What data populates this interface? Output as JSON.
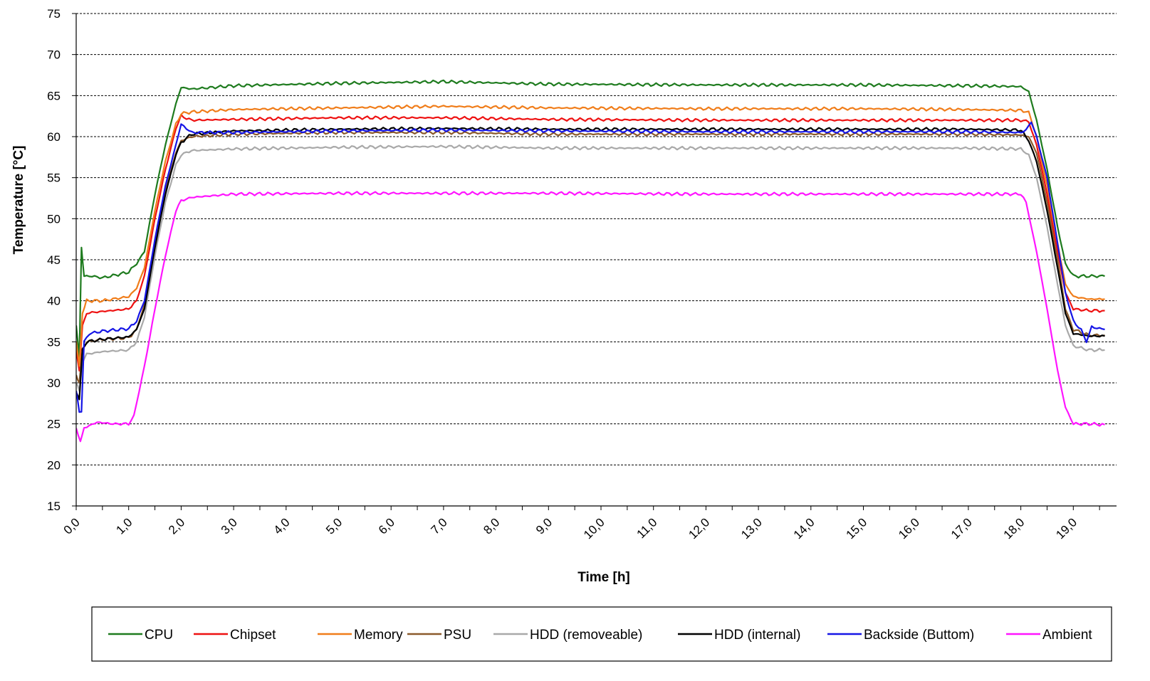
{
  "chart_data": {
    "type": "line",
    "title": "",
    "xlabel": "Time [h]",
    "ylabel": "Temperature [°C]",
    "xlim": [
      0,
      19.6
    ],
    "ylim": [
      15,
      75
    ],
    "x_ticks": [
      "0,0",
      "1,0",
      "2,0",
      "3,0",
      "4,0",
      "5,0",
      "6,0",
      "7,0",
      "8,0",
      "9,0",
      "10,0",
      "11,0",
      "12,0",
      "13,0",
      "14,0",
      "15,0",
      "16,0",
      "17,0",
      "18,0",
      "19,0"
    ],
    "y_ticks": [
      "15",
      "20",
      "25",
      "30",
      "35",
      "40",
      "45",
      "50",
      "55",
      "60",
      "65",
      "70",
      "75"
    ],
    "grid": "horizontal dashed",
    "legend_position": "bottom",
    "series": [
      {
        "name": "CPU",
        "color": "#1e7b1e",
        "points": [
          [
            0,
            37
          ],
          [
            0.06,
            33
          ],
          [
            0.1,
            46.5
          ],
          [
            0.15,
            43
          ],
          [
            0.3,
            43
          ],
          [
            0.5,
            42.8
          ],
          [
            0.8,
            43.2
          ],
          [
            1.0,
            43.5
          ],
          [
            1.15,
            44.5
          ],
          [
            1.3,
            46
          ],
          [
            1.5,
            53
          ],
          [
            1.7,
            59
          ],
          [
            1.9,
            64
          ],
          [
            2.0,
            66
          ],
          [
            2.2,
            65.8
          ],
          [
            3,
            66.2
          ],
          [
            5,
            66.5
          ],
          [
            7,
            66.7
          ],
          [
            9,
            66.4
          ],
          [
            12,
            66.3
          ],
          [
            15,
            66.3
          ],
          [
            17,
            66.2
          ],
          [
            18.0,
            66.1
          ],
          [
            18.15,
            65.5
          ],
          [
            18.3,
            62
          ],
          [
            18.5,
            56
          ],
          [
            18.7,
            49
          ],
          [
            18.85,
            44.5
          ],
          [
            19.0,
            43
          ],
          [
            19.3,
            43
          ],
          [
            19.6,
            43
          ]
        ]
      },
      {
        "name": "Chipset",
        "color": "#ee1111",
        "points": [
          [
            0,
            34
          ],
          [
            0.06,
            31.5
          ],
          [
            0.12,
            37
          ],
          [
            0.2,
            38.5
          ],
          [
            0.5,
            38.7
          ],
          [
            1.0,
            39
          ],
          [
            1.15,
            40
          ],
          [
            1.3,
            43
          ],
          [
            1.5,
            50
          ],
          [
            1.7,
            56
          ],
          [
            1.9,
            61
          ],
          [
            2.0,
            62.5
          ],
          [
            2.2,
            62
          ],
          [
            3,
            62.1
          ],
          [
            5,
            62.3
          ],
          [
            7,
            62.3
          ],
          [
            9,
            62.1
          ],
          [
            12,
            62
          ],
          [
            15,
            62
          ],
          [
            17,
            62
          ],
          [
            18.0,
            62
          ],
          [
            18.15,
            61.8
          ],
          [
            18.3,
            59
          ],
          [
            18.5,
            53
          ],
          [
            18.7,
            46
          ],
          [
            18.85,
            41
          ],
          [
            19.0,
            39
          ],
          [
            19.3,
            38.8
          ],
          [
            19.6,
            38.8
          ]
        ]
      },
      {
        "name": "Memory",
        "color": "#f07d1a",
        "points": [
          [
            0,
            35
          ],
          [
            0.06,
            32
          ],
          [
            0.12,
            38.5
          ],
          [
            0.2,
            40
          ],
          [
            0.5,
            40
          ],
          [
            1.0,
            40.5
          ],
          [
            1.15,
            41.5
          ],
          [
            1.3,
            44
          ],
          [
            1.5,
            51
          ],
          [
            1.7,
            57
          ],
          [
            1.9,
            61.5
          ],
          [
            2.0,
            62.8
          ],
          [
            2.2,
            63
          ],
          [
            3,
            63.3
          ],
          [
            5,
            63.5
          ],
          [
            7,
            63.7
          ],
          [
            9,
            63.5
          ],
          [
            12,
            63.4
          ],
          [
            15,
            63.4
          ],
          [
            17,
            63.3
          ],
          [
            18.0,
            63.2
          ],
          [
            18.15,
            63
          ],
          [
            18.3,
            60
          ],
          [
            18.5,
            54
          ],
          [
            18.7,
            47
          ],
          [
            18.85,
            42
          ],
          [
            19.0,
            40.5
          ],
          [
            19.3,
            40.2
          ],
          [
            19.6,
            40.2
          ]
        ]
      },
      {
        "name": "PSU",
        "color": "#8b5a2b",
        "points": [
          [
            0,
            31
          ],
          [
            0.06,
            30
          ],
          [
            0.12,
            34
          ],
          [
            0.2,
            35
          ],
          [
            0.5,
            35.3
          ],
          [
            1.0,
            35.5
          ],
          [
            1.15,
            36.5
          ],
          [
            1.3,
            39.5
          ],
          [
            1.5,
            47
          ],
          [
            1.7,
            53.5
          ],
          [
            1.9,
            58
          ],
          [
            2.0,
            59.5
          ],
          [
            2.2,
            60
          ],
          [
            3,
            60.3
          ],
          [
            5,
            60.5
          ],
          [
            7,
            60.5
          ],
          [
            9,
            60.3
          ],
          [
            12,
            60.3
          ],
          [
            15,
            60.3
          ],
          [
            17,
            60.3
          ],
          [
            18.0,
            60.2
          ],
          [
            18.15,
            60
          ],
          [
            18.3,
            58
          ],
          [
            18.5,
            52
          ],
          [
            18.7,
            45
          ],
          [
            18.85,
            39
          ],
          [
            19.0,
            36.5
          ],
          [
            19.3,
            35.8
          ],
          [
            19.6,
            35.8
          ]
        ]
      },
      {
        "name": "HDD (removeable)",
        "color": "#a9a9a9",
        "points": [
          [
            0,
            30
          ],
          [
            0.06,
            29
          ],
          [
            0.12,
            32.5
          ],
          [
            0.2,
            33.5
          ],
          [
            0.5,
            33.8
          ],
          [
            1.0,
            34
          ],
          [
            1.15,
            35
          ],
          [
            1.3,
            38
          ],
          [
            1.5,
            45.5
          ],
          [
            1.7,
            52
          ],
          [
            1.9,
            56.5
          ],
          [
            2.0,
            57.8
          ],
          [
            2.2,
            58.3
          ],
          [
            3,
            58.5
          ],
          [
            5,
            58.7
          ],
          [
            7,
            58.8
          ],
          [
            9,
            58.6
          ],
          [
            12,
            58.6
          ],
          [
            15,
            58.6
          ],
          [
            17,
            58.6
          ],
          [
            18.0,
            58.5
          ],
          [
            18.15,
            57.8
          ],
          [
            18.3,
            55
          ],
          [
            18.5,
            49
          ],
          [
            18.7,
            42
          ],
          [
            18.85,
            37
          ],
          [
            19.0,
            34.5
          ],
          [
            19.3,
            34
          ],
          [
            19.6,
            34
          ]
        ]
      },
      {
        "name": "HDD (internal)",
        "color": "#000000",
        "points": [
          [
            0,
            29
          ],
          [
            0.06,
            28
          ],
          [
            0.12,
            34
          ],
          [
            0.2,
            35
          ],
          [
            0.5,
            35.3
          ],
          [
            1.0,
            35.6
          ],
          [
            1.15,
            36.5
          ],
          [
            1.3,
            39
          ],
          [
            1.5,
            46.5
          ],
          [
            1.7,
            53
          ],
          [
            1.9,
            57.8
          ],
          [
            2.0,
            59.3
          ],
          [
            2.2,
            60.3
          ],
          [
            3,
            60.7
          ],
          [
            5,
            60.9
          ],
          [
            7,
            61
          ],
          [
            9,
            60.9
          ],
          [
            12,
            60.9
          ],
          [
            15,
            60.9
          ],
          [
            17,
            60.9
          ],
          [
            18.0,
            60.8
          ],
          [
            18.15,
            59.5
          ],
          [
            18.3,
            57
          ],
          [
            18.5,
            51
          ],
          [
            18.7,
            44
          ],
          [
            18.85,
            38.5
          ],
          [
            19.0,
            36
          ],
          [
            19.3,
            35.7
          ],
          [
            19.6,
            35.7
          ]
        ]
      },
      {
        "name": "Backside (Buttom)",
        "color": "#1515e6",
        "points": [
          [
            0,
            29
          ],
          [
            0.06,
            26.5
          ],
          [
            0.1,
            26.5
          ],
          [
            0.15,
            35
          ],
          [
            0.25,
            36
          ],
          [
            0.5,
            36.3
          ],
          [
            1.0,
            36.6
          ],
          [
            1.15,
            37.5
          ],
          [
            1.3,
            40
          ],
          [
            1.5,
            47.5
          ],
          [
            1.7,
            54
          ],
          [
            1.9,
            59
          ],
          [
            2.0,
            61.5
          ],
          [
            2.2,
            60.5
          ],
          [
            3,
            60.5
          ],
          [
            5,
            60.7
          ],
          [
            7,
            60.8
          ],
          [
            9,
            60.7
          ],
          [
            12,
            60.6
          ],
          [
            15,
            60.6
          ],
          [
            17,
            60.6
          ],
          [
            18.0,
            60.5
          ],
          [
            18.1,
            60.8
          ],
          [
            18.2,
            61.8
          ],
          [
            18.3,
            60
          ],
          [
            18.5,
            55
          ],
          [
            18.7,
            47
          ],
          [
            18.85,
            41
          ],
          [
            19.0,
            37.5
          ],
          [
            19.15,
            36.5
          ],
          [
            19.25,
            35
          ],
          [
            19.35,
            36.8
          ],
          [
            19.6,
            36.5
          ]
        ]
      },
      {
        "name": "Ambient",
        "color": "#ff14ff",
        "points": [
          [
            0,
            24.5
          ],
          [
            0.08,
            22.8
          ],
          [
            0.15,
            24.5
          ],
          [
            0.4,
            25.2
          ],
          [
            0.7,
            25
          ],
          [
            1.0,
            25
          ],
          [
            1.1,
            26
          ],
          [
            1.3,
            32
          ],
          [
            1.5,
            39
          ],
          [
            1.7,
            45.5
          ],
          [
            1.9,
            51
          ],
          [
            2.0,
            52.2
          ],
          [
            2.2,
            52.6
          ],
          [
            3,
            53
          ],
          [
            5,
            53.1
          ],
          [
            7,
            53.1
          ],
          [
            9,
            53.1
          ],
          [
            12,
            53
          ],
          [
            15,
            53
          ],
          [
            17,
            53
          ],
          [
            18.0,
            53
          ],
          [
            18.1,
            52
          ],
          [
            18.3,
            46
          ],
          [
            18.5,
            39
          ],
          [
            18.7,
            31.5
          ],
          [
            18.85,
            27
          ],
          [
            19.0,
            25
          ],
          [
            19.3,
            25
          ],
          [
            19.6,
            24.9
          ]
        ]
      }
    ]
  }
}
